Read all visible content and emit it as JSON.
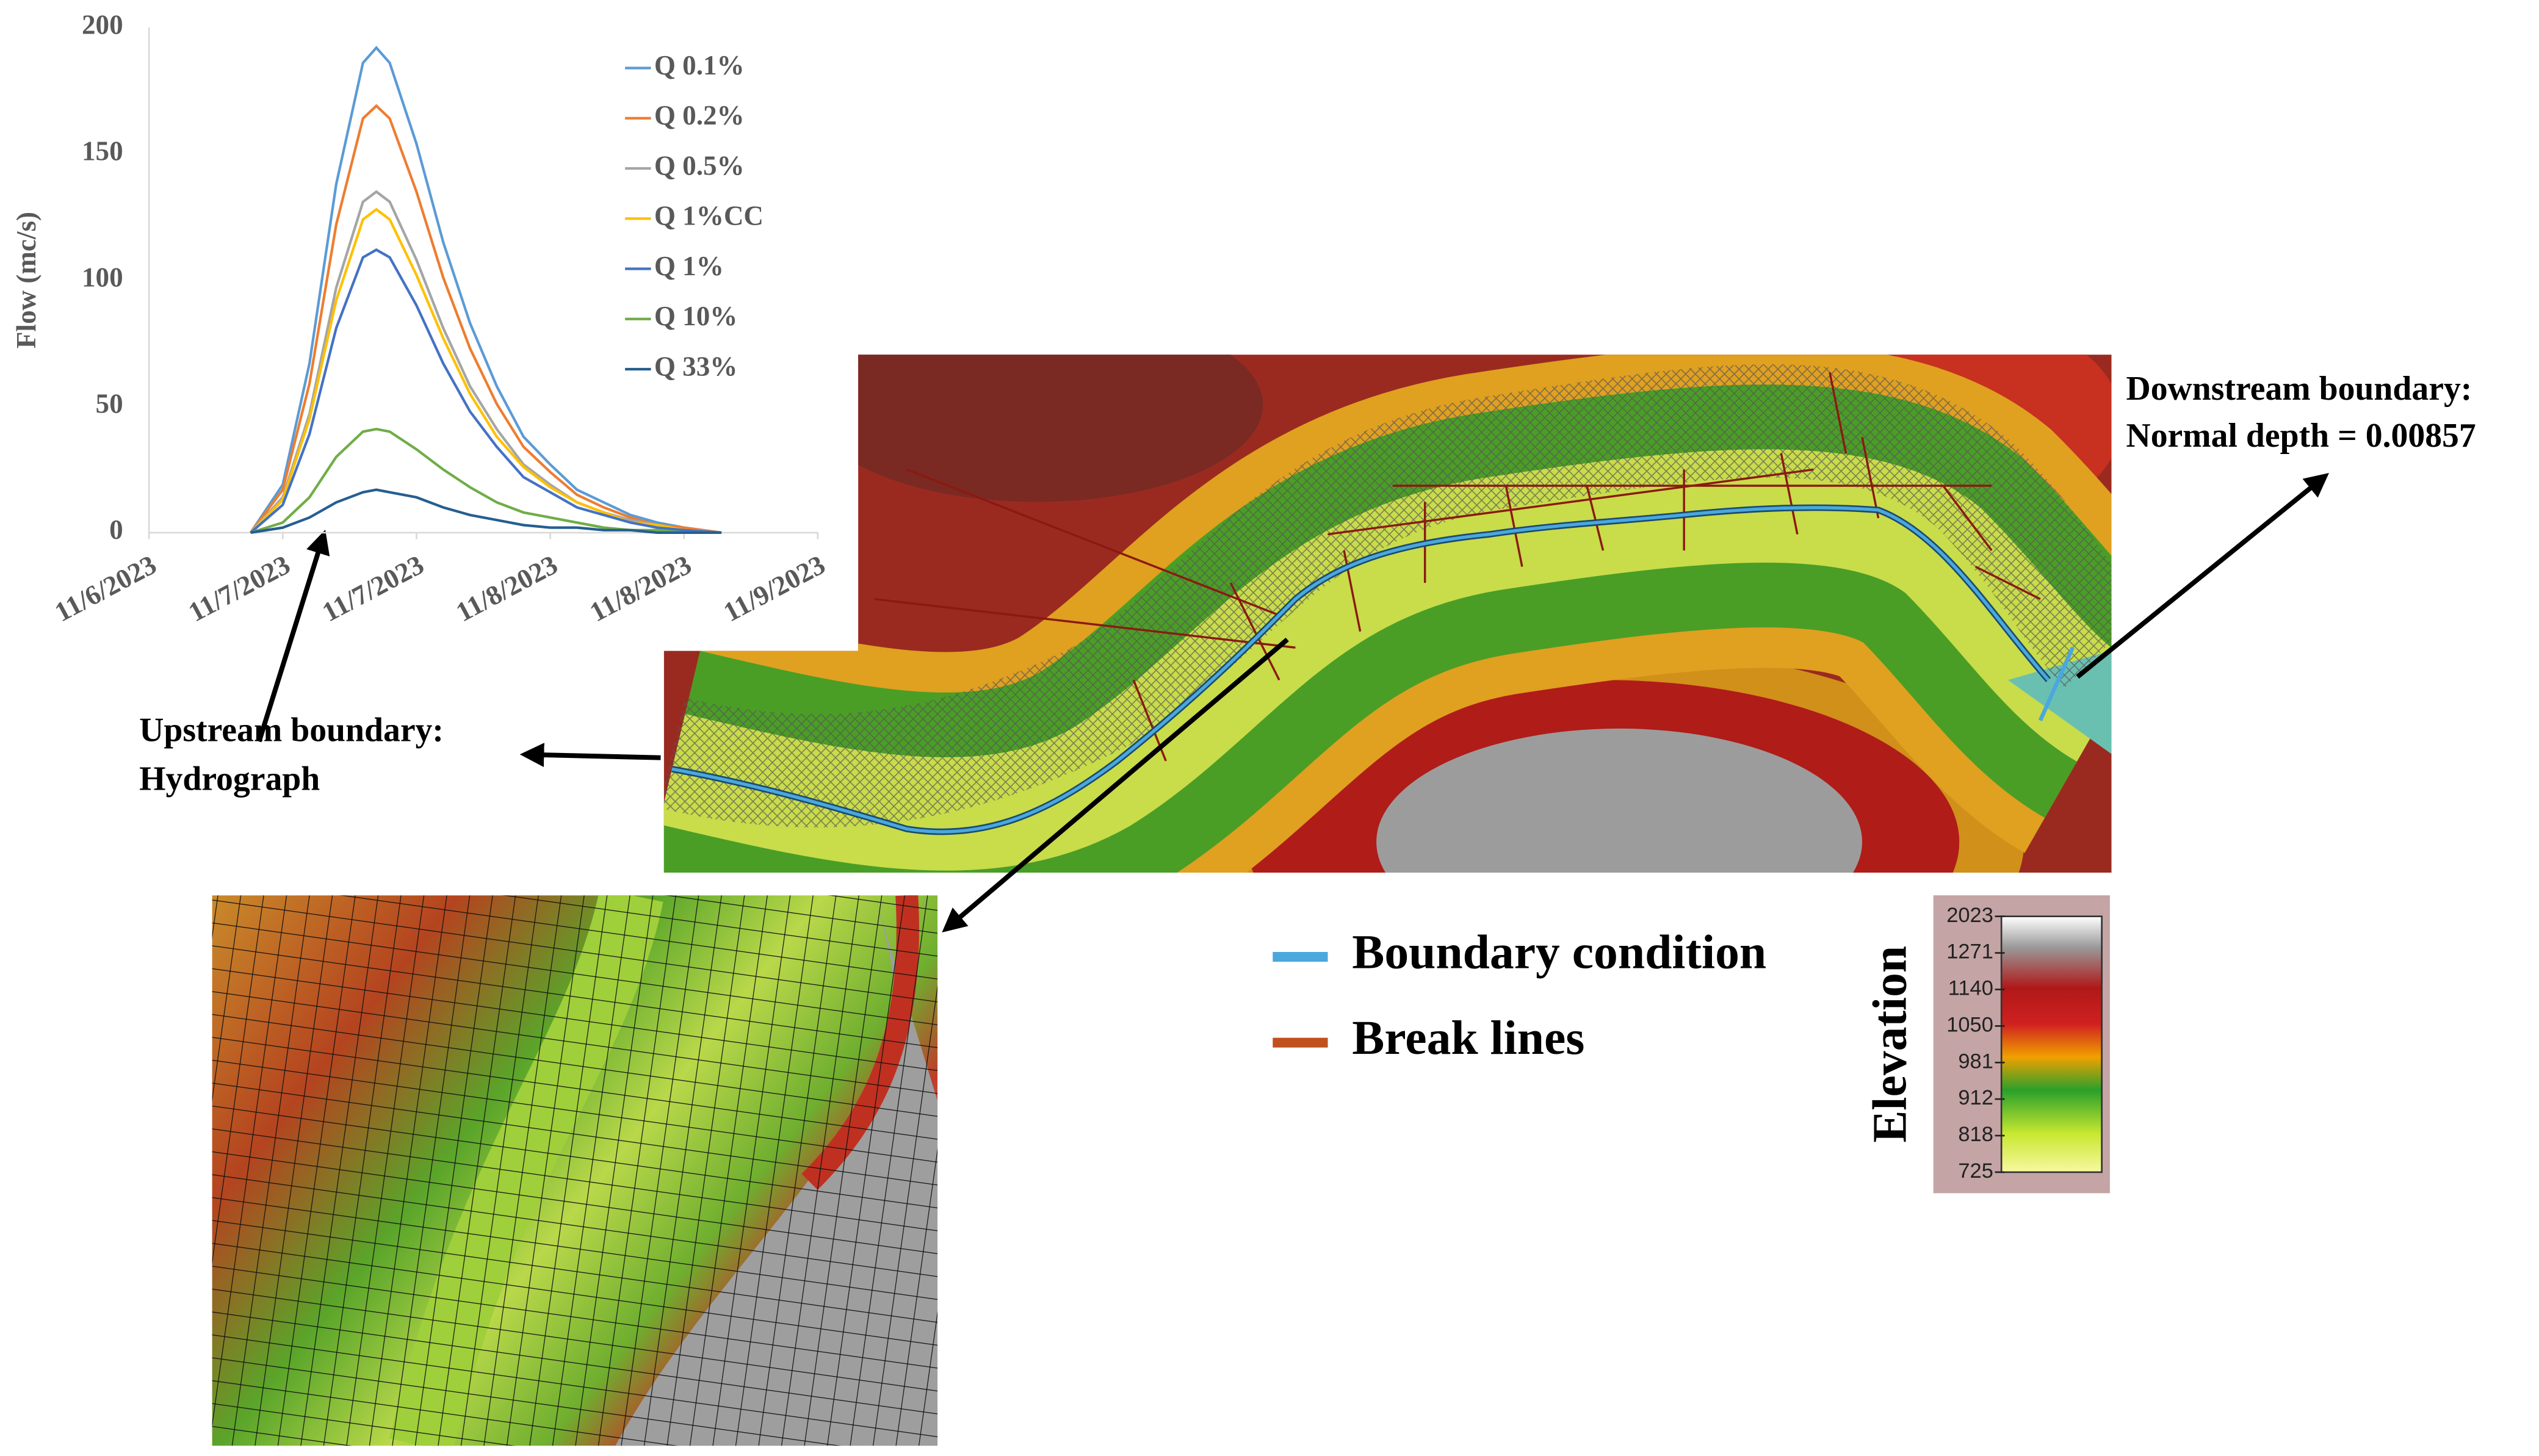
{
  "chart_data": {
    "type": "line",
    "ylabel": "Flow (mc/s)",
    "x": [
      0.38,
      0.5,
      0.6,
      0.7,
      0.8,
      0.85,
      0.9,
      1.0,
      1.1,
      1.2,
      1.3,
      1.4,
      1.5,
      1.6,
      1.7,
      1.8,
      1.9,
      2.0,
      2.14
    ],
    "xlim": [
      0,
      2.5
    ],
    "xticks": [
      {
        "value": 0,
        "label": "11/6/2023"
      },
      {
        "value": 0.5,
        "label": "11/7/2023"
      },
      {
        "value": 1,
        "label": "11/7/2023"
      },
      {
        "value": 1.5,
        "label": "11/8/2023"
      },
      {
        "value": 2,
        "label": "11/8/2023"
      },
      {
        "value": 2.5,
        "label": "11/9/2023"
      }
    ],
    "ylim": [
      0,
      200
    ],
    "yticks": [
      0,
      50,
      100,
      150,
      200
    ],
    "grid": false,
    "series": [
      {
        "name": "Q 0.1%",
        "color": "#5b9bd5",
        "values": [
          0,
          19,
          67,
          138,
          186,
          192,
          186,
          154,
          115,
          83,
          58,
          38,
          27,
          17,
          12,
          7,
          4,
          2,
          0
        ]
      },
      {
        "name": "Q 0.2%",
        "color": "#ed7d31",
        "values": [
          0,
          17,
          59,
          122,
          164,
          169,
          164,
          135,
          101,
          73,
          51,
          34,
          24,
          15,
          10,
          6,
          3,
          2,
          0
        ]
      },
      {
        "name": "Q 0.5%",
        "color": "#a5a5a5",
        "values": [
          0,
          14,
          47,
          97,
          131,
          135,
          131,
          108,
          81,
          58,
          41,
          27,
          19,
          12,
          8,
          5,
          3,
          1,
          0
        ]
      },
      {
        "name": "Q 1%CC",
        "color": "#ffc000",
        "values": [
          0,
          13,
          45,
          92,
          124,
          128,
          124,
          102,
          77,
          55,
          38,
          26,
          18,
          12,
          8,
          4,
          3,
          1,
          0
        ]
      },
      {
        "name": "Q 1%",
        "color": "#4472c4",
        "values": [
          0,
          11,
          39,
          81,
          109,
          112,
          109,
          90,
          67,
          48,
          34,
          22,
          16,
          10,
          7,
          4,
          2,
          1,
          0
        ]
      },
      {
        "name": "Q 10%",
        "color": "#70ad47",
        "values": [
          0,
          4,
          14,
          30,
          40,
          41,
          40,
          33,
          25,
          18,
          12,
          8,
          6,
          4,
          2,
          1,
          1,
          0,
          0
        ]
      },
      {
        "name": "Q 33%",
        "color": "#255e91",
        "values": [
          0,
          2,
          6,
          12,
          16,
          17,
          16,
          14,
          10,
          7,
          5,
          3,
          2,
          2,
          1,
          1,
          0,
          0,
          0
        ]
      }
    ]
  },
  "annotations": {
    "downstream": [
      "Downstream boundary:",
      "Normal depth = 0.00857"
    ],
    "upstream": [
      "Upstream boundary:",
      "Hydrograph"
    ]
  },
  "map_legend": [
    {
      "label": "Boundary condition",
      "color": "#4aa8dc"
    },
    {
      "label": "Break lines",
      "color": "#c0501e"
    }
  ],
  "elevation_legend": {
    "title": "Elevation",
    "labels": [
      "2023",
      "1271",
      "1140",
      "1050",
      "981",
      "912",
      "818",
      "725"
    ]
  }
}
